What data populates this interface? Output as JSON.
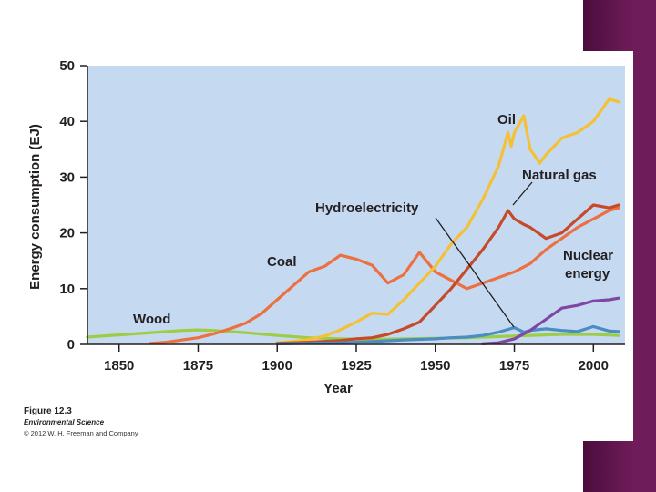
{
  "figure": {
    "title": "Figure 12.3",
    "subtitle": "Environmental Science",
    "copyright": "© 2012 W. H. Freeman and Company"
  },
  "colors": {
    "plot_bg": "#c5d9f1",
    "accent_bar": "#5b1449"
  },
  "chart_data": {
    "type": "line",
    "title": "",
    "xlabel": "Year",
    "ylabel": "Energy consumption (EJ)",
    "xlim": [
      1840,
      2010
    ],
    "ylim": [
      0,
      50
    ],
    "xticks": [
      1850,
      1875,
      1900,
      1925,
      1950,
      1975,
      2000
    ],
    "yticks": [
      0,
      10,
      20,
      30,
      40,
      50
    ],
    "series": [
      {
        "name": "Wood",
        "color": "#9ccd44",
        "x": [
          1840,
          1850,
          1860,
          1870,
          1875,
          1880,
          1890,
          1900,
          1910,
          1920,
          1930,
          1940,
          1950,
          1960,
          1970,
          1980,
          1990,
          2000,
          2008
        ],
        "y": [
          1.3,
          1.7,
          2.1,
          2.5,
          2.6,
          2.5,
          2.1,
          1.6,
          1.2,
          1.0,
          0.9,
          1.0,
          1.1,
          1.2,
          1.4,
          1.6,
          1.8,
          1.8,
          1.6
        ]
      },
      {
        "name": "Coal",
        "color": "#ec7040",
        "x": [
          1860,
          1865,
          1870,
          1875,
          1880,
          1885,
          1890,
          1895,
          1900,
          1905,
          1910,
          1915,
          1920,
          1925,
          1930,
          1935,
          1940,
          1945,
          1950,
          1955,
          1960,
          1965,
          1970,
          1975,
          1980,
          1985,
          1990,
          1995,
          2000,
          2005,
          2008
        ],
        "y": [
          0.2,
          0.4,
          0.8,
          1.2,
          1.9,
          2.8,
          3.8,
          5.5,
          8,
          10.5,
          13,
          14,
          16,
          15.3,
          14.2,
          11,
          12.5,
          16.5,
          13,
          11.5,
          10,
          11,
          12,
          13,
          14.5,
          17,
          19,
          21,
          22.5,
          24,
          24.5
        ]
      },
      {
        "name": "Oil",
        "color": "#f4c136",
        "x": [
          1900,
          1905,
          1910,
          1915,
          1920,
          1925,
          1930,
          1935,
          1940,
          1945,
          1950,
          1955,
          1960,
          1965,
          1970,
          1973,
          1974,
          1975,
          1978,
          1980,
          1983,
          1985,
          1990,
          1995,
          2000,
          2005,
          2008
        ],
        "y": [
          0.3,
          0.5,
          0.9,
          1.5,
          2.6,
          4,
          5.6,
          5.4,
          8,
          11,
          14,
          18,
          21,
          26,
          32,
          38,
          35.5,
          38,
          41,
          35,
          32.5,
          34,
          37,
          38,
          40,
          44,
          43.5
        ]
      },
      {
        "name": "Natural gas",
        "color": "#c64a2a",
        "x": [
          1900,
          1910,
          1920,
          1925,
          1930,
          1935,
          1940,
          1945,
          1950,
          1955,
          1960,
          1965,
          1970,
          1973,
          1975,
          1978,
          1980,
          1985,
          1990,
          1995,
          2000,
          2005,
          2008
        ],
        "y": [
          0.2,
          0.4,
          0.7,
          1,
          1.2,
          1.8,
          2.8,
          4,
          7,
          10,
          13.5,
          17,
          21,
          24,
          22.5,
          21.5,
          21,
          19,
          20,
          22.5,
          25,
          24.5,
          25
        ]
      },
      {
        "name": "Hydroelectricity",
        "color": "#4a8cc4",
        "x": [
          1900,
          1910,
          1920,
          1930,
          1940,
          1950,
          1955,
          1960,
          1965,
          1970,
          1975,
          1978,
          1980,
          1985,
          1990,
          1995,
          2000,
          2005,
          2008
        ],
        "y": [
          0.1,
          0.2,
          0.3,
          0.5,
          0.8,
          1.0,
          1.2,
          1.3,
          1.6,
          2.2,
          3,
          2.2,
          2.5,
          2.8,
          2.5,
          2.3,
          3.2,
          2.4,
          2.3
        ]
      },
      {
        "name": "Nuclear energy",
        "color": "#7f47a3",
        "x": [
          1965,
          1970,
          1975,
          1980,
          1985,
          1990,
          1995,
          2000,
          2005,
          2008
        ],
        "y": [
          0.1,
          0.3,
          1,
          2.5,
          4.5,
          6.5,
          7,
          7.8,
          8,
          8.3
        ]
      }
    ],
    "annotations": [
      {
        "label": "Wood",
        "series": "Wood"
      },
      {
        "label": "Coal",
        "series": "Coal"
      },
      {
        "label": "Oil",
        "series": "Oil"
      },
      {
        "label": "Natural gas",
        "series": "Natural gas"
      },
      {
        "label": "Hydroelectricity",
        "series": "Hydroelectricity"
      },
      {
        "label": "Nuclear energy",
        "series": "Nuclear energy"
      }
    ]
  }
}
